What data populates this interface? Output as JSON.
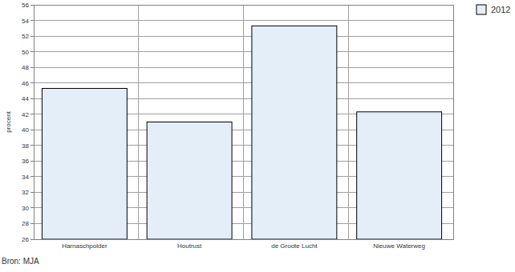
{
  "chart_data": {
    "type": "bar",
    "y_label": "procent",
    "source": "Bron: MJA",
    "categories": [
      "Harnaschpolder",
      "Houtrust",
      "de Groote Lucht",
      "Nieuwe Waterweg"
    ],
    "series": [
      {
        "name": "2012",
        "color": "#e3eef9",
        "values": [
          45.3,
          41.0,
          53.3,
          42.3
        ]
      }
    ],
    "ylim": [
      26,
      56
    ],
    "yticks": [
      26,
      28,
      30,
      32,
      34,
      36,
      38,
      40,
      42,
      44,
      46,
      48,
      50,
      52,
      54,
      56
    ],
    "grid": true,
    "legend": "top-right"
  }
}
